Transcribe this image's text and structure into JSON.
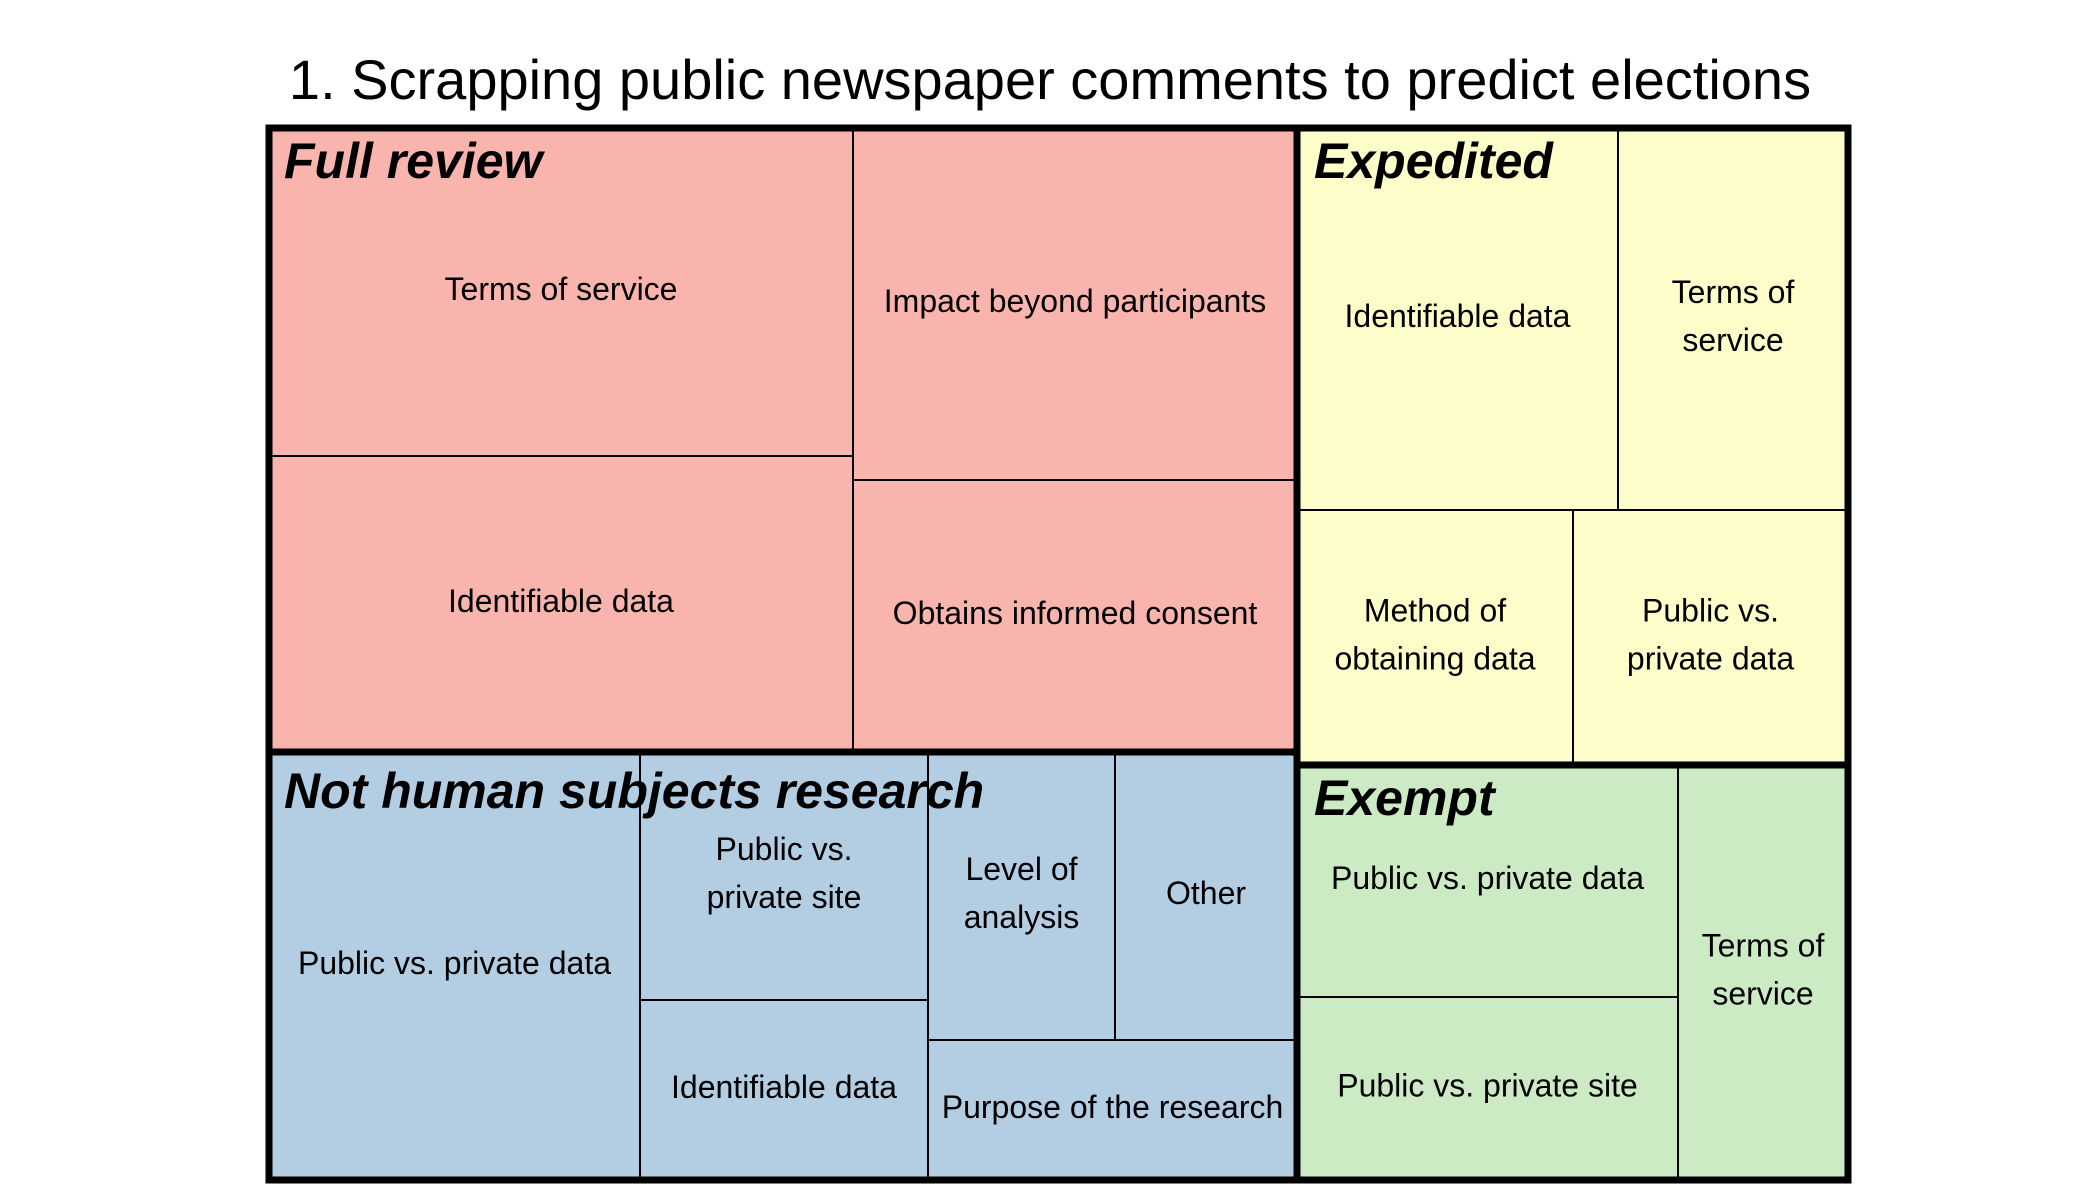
{
  "chart_data": {
    "type": "treemap",
    "title": "1. Scrapping public newspaper comments to predict elections",
    "groups": [
      {
        "name": "Full review",
        "color": "#f9b4ae",
        "children": [
          {
            "name": "Terms of service",
            "lines": [
              "Terms of service"
            ],
            "value": 114.2
          },
          {
            "name": "Identifiable data",
            "lines": [
              "Identifiable data"
            ],
            "value": 104.2
          },
          {
            "name": "Impact beyond participants",
            "lines": [
              "Impact beyond participants"
            ],
            "value": 92.7
          },
          {
            "name": "Obtains informed consent",
            "lines": [
              "Obtains informed consent"
            ],
            "value": 72.4
          }
        ]
      },
      {
        "name": "Expedited",
        "color": "#fdfdca",
        "children": [
          {
            "name": "Identifiable data",
            "lines": [
              "Identifiable data"
            ],
            "value": 73.4
          },
          {
            "name": "Terms of service",
            "lines": [
              "Terms of",
              "service"
            ],
            "value": 52.5
          },
          {
            "name": "Method of obtaining data",
            "lines": [
              "Method of",
              "obtaining data"
            ],
            "value": 45.8
          },
          {
            "name": "Public vs. private data",
            "lines": [
              "Public vs.",
              "private data"
            ],
            "value": 44.7
          }
        ]
      },
      {
        "name": "Not human subjects research",
        "color": "#b3cde3",
        "children": [
          {
            "name": "Public vs. private data",
            "lines": [
              "Public vs. private data"
            ],
            "value": 97.1
          },
          {
            "name": "Public vs. private site",
            "lines": [
              "Public vs.",
              "private site"
            ],
            "value": 44.2
          },
          {
            "name": "Identifiable data",
            "lines": [
              "Identifiable data"
            ],
            "value": 32.0
          },
          {
            "name": "Level of analysis",
            "lines": [
              "Level of",
              "analysis"
            ],
            "value": 32.5
          },
          {
            "name": "Other",
            "lines": [
              "Other"
            ],
            "value": 32.0
          },
          {
            "name": "Purpose of the research",
            "lines": [
              "Purpose of the research"
            ],
            "value": 28.1
          }
        ]
      },
      {
        "name": "Exempt",
        "color": "#ccebc5",
        "children": [
          {
            "name": "Public vs. private data",
            "lines": [
              "Public vs. private data"
            ],
            "value": 51.0
          },
          {
            "name": "Public vs. private site",
            "lines": [
              "Public vs. private site"
            ],
            "value": 41.4
          },
          {
            "name": "Terms of service",
            "lines": [
              "Terms of",
              "service"
            ],
            "value": 42.3
          }
        ]
      }
    ]
  }
}
